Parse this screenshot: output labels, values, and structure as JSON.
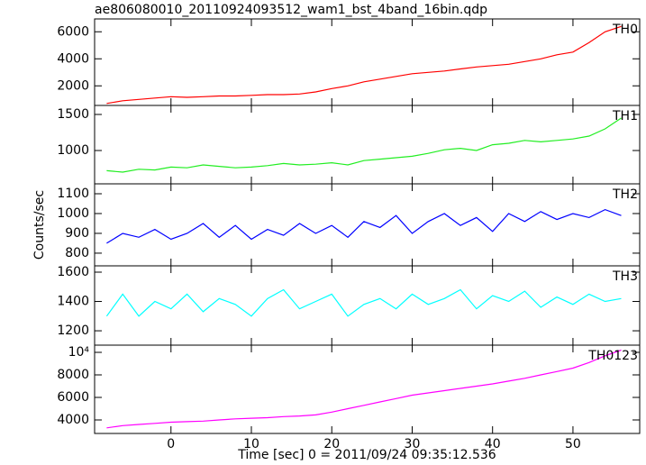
{
  "chart_data": [
    {
      "type": "line",
      "title": "ae806080010_20110924093512_wam1_bst_4band_16bin.qdp",
      "xlim": [
        -9.5,
        58.3
      ],
      "ylim": [
        550,
        6950
      ],
      "xticks": [
        0,
        10,
        20,
        30,
        40,
        50
      ],
      "yticks": [
        2000,
        4000,
        6000
      ],
      "x": [
        -8,
        -6,
        -4,
        -2,
        0,
        2,
        4,
        6,
        8,
        10,
        12,
        14,
        16,
        18,
        20,
        22,
        24,
        26,
        28,
        30,
        32,
        34,
        36,
        38,
        40,
        42,
        44,
        46,
        48,
        50,
        52,
        54,
        56
      ],
      "series": [
        {
          "name": "TH0",
          "color": "#ff0000",
          "values": [
            700,
            900,
            1000,
            1100,
            1200,
            1150,
            1200,
            1250,
            1250,
            1300,
            1350,
            1350,
            1400,
            1550,
            1800,
            2000,
            2300,
            2500,
            2700,
            2900,
            3000,
            3100,
            3250,
            3400,
            3500,
            3600,
            3800,
            4000,
            4300,
            4500,
            5200,
            6000,
            6400
          ]
        }
      ]
    },
    {
      "type": "line",
      "xlim": [
        -9.5,
        58.3
      ],
      "ylim": [
        538,
        1625
      ],
      "xticks": [
        0,
        10,
        20,
        30,
        40,
        50
      ],
      "yticks": [
        1000,
        1500
      ],
      "x": [
        -8,
        -6,
        -4,
        -2,
        0,
        2,
        4,
        6,
        8,
        10,
        12,
        14,
        16,
        18,
        20,
        22,
        24,
        26,
        28,
        30,
        32,
        34,
        36,
        38,
        40,
        42,
        44,
        46,
        48,
        50,
        52,
        54,
        56
      ],
      "series": [
        {
          "name": "TH1",
          "color": "#22ee22",
          "values": [
            720,
            700,
            740,
            730,
            770,
            760,
            800,
            780,
            760,
            770,
            790,
            820,
            800,
            810,
            830,
            800,
            860,
            880,
            900,
            920,
            960,
            1010,
            1030,
            1000,
            1080,
            1100,
            1140,
            1120,
            1140,
            1160,
            1200,
            1300,
            1450
          ]
        }
      ]
    },
    {
      "type": "line",
      "y_label": "Counts/sec",
      "xlim": [
        -9.5,
        58.3
      ],
      "ylim": [
        736,
        1150
      ],
      "xticks": [
        0,
        10,
        20,
        30,
        40,
        50
      ],
      "yticks": [
        800,
        900,
        1000,
        1100
      ],
      "x": [
        -8,
        -6,
        -4,
        -2,
        0,
        2,
        4,
        6,
        8,
        10,
        12,
        14,
        16,
        18,
        20,
        22,
        24,
        26,
        28,
        30,
        32,
        34,
        36,
        38,
        40,
        42,
        44,
        46,
        48,
        50,
        52,
        54,
        56
      ],
      "series": [
        {
          "name": "TH2",
          "color": "#0000ff",
          "values": [
            850,
            900,
            880,
            920,
            870,
            900,
            950,
            880,
            940,
            870,
            920,
            890,
            950,
            900,
            940,
            880,
            960,
            930,
            990,
            900,
            960,
            1000,
            940,
            980,
            910,
            1000,
            960,
            1010,
            970,
            1000,
            980,
            1020,
            990
          ]
        }
      ]
    },
    {
      "type": "line",
      "xlim": [
        -9.5,
        58.3
      ],
      "ylim": [
        1102,
        1643
      ],
      "xticks": [
        0,
        10,
        20,
        30,
        40,
        50
      ],
      "yticks": [
        1200,
        1400,
        1600
      ],
      "x": [
        -8,
        -6,
        -4,
        -2,
        0,
        2,
        4,
        6,
        8,
        10,
        12,
        14,
        16,
        18,
        20,
        22,
        24,
        26,
        28,
        30,
        32,
        34,
        36,
        38,
        40,
        42,
        44,
        46,
        48,
        50,
        52,
        54,
        56
      ],
      "series": [
        {
          "name": "TH3",
          "color": "#00ffff",
          "values": [
            1300,
            1450,
            1300,
            1400,
            1350,
            1450,
            1330,
            1420,
            1380,
            1300,
            1420,
            1480,
            1350,
            1400,
            1450,
            1300,
            1380,
            1420,
            1350,
            1450,
            1380,
            1420,
            1480,
            1350,
            1440,
            1400,
            1470,
            1360,
            1430,
            1380,
            1450,
            1400,
            1420
          ]
        }
      ]
    },
    {
      "type": "line",
      "x_label": "Time [sec] 0 = 2011/09/24 09:35:12.536",
      "xlim": [
        -9.5,
        58.3
      ],
      "ylim": [
        2800,
        10640
      ],
      "xticks": [
        0,
        10,
        20,
        30,
        40,
        50
      ],
      "yticks": [
        4000,
        6000,
        8000,
        {
          "value": 10000,
          "label": "10⁴"
        }
      ],
      "x": [
        -8,
        -6,
        -4,
        -2,
        0,
        2,
        4,
        6,
        8,
        10,
        12,
        14,
        16,
        18,
        20,
        22,
        24,
        26,
        28,
        30,
        32,
        34,
        36,
        38,
        40,
        42,
        44,
        46,
        48,
        50,
        52,
        54,
        56
      ],
      "series": [
        {
          "name": "TH0123",
          "color": "#ff00ff",
          "values": [
            3300,
            3500,
            3600,
            3700,
            3800,
            3850,
            3900,
            4000,
            4100,
            4150,
            4200,
            4300,
            4350,
            4450,
            4700,
            5000,
            5300,
            5600,
            5900,
            6200,
            6400,
            6600,
            6800,
            7000,
            7200,
            7450,
            7700,
            8000,
            8300,
            8600,
            9100,
            9700,
            10200
          ]
        }
      ]
    }
  ]
}
